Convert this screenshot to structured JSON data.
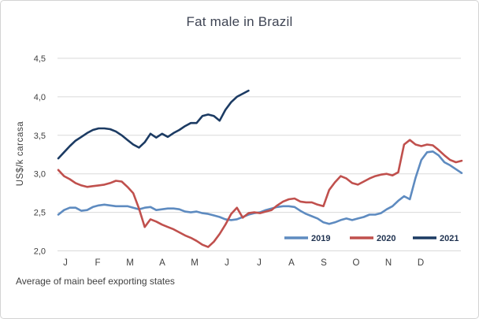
{
  "chart_data": {
    "type": "line",
    "title": "Fat male in Brazil",
    "ylabel": "US$/k carcasa",
    "footnote": "Average of main beef exporting states",
    "x_tick_labels": [
      "J",
      "F",
      "M",
      "A",
      "M",
      "J",
      "J",
      "A",
      "S",
      "O",
      "N",
      "D"
    ],
    "x_unit": "weekly observations, January to December",
    "y_tick_labels": [
      "2,0",
      "2,5",
      "3,0",
      "3,5",
      "4,0",
      "4,5"
    ],
    "ylim": [
      2.0,
      4.5
    ],
    "decimal_separator": ",",
    "grid": "horizontal",
    "gridline_color": "#d9d9d9",
    "background_color": "#ffffff",
    "legend_position": "inside-bottom-right",
    "legend_text_color": "#1f3250",
    "series": [
      {
        "name": "2019",
        "color": "#5e8bc0",
        "values": [
          2.47,
          2.53,
          2.56,
          2.56,
          2.52,
          2.53,
          2.57,
          2.59,
          2.6,
          2.59,
          2.58,
          2.58,
          2.58,
          2.56,
          2.54,
          2.56,
          2.57,
          2.53,
          2.54,
          2.55,
          2.55,
          2.54,
          2.51,
          2.5,
          2.51,
          2.49,
          2.48,
          2.46,
          2.44,
          2.41,
          2.4,
          2.41,
          2.44,
          2.47,
          2.49,
          2.5,
          2.53,
          2.55,
          2.57,
          2.58,
          2.58,
          2.57,
          2.52,
          2.48,
          2.45,
          2.42,
          2.37,
          2.35,
          2.37,
          2.4,
          2.42,
          2.4,
          2.42,
          2.44,
          2.47,
          2.47,
          2.49,
          2.54,
          2.58,
          2.65,
          2.71,
          2.67,
          2.95,
          3.18,
          3.28,
          3.29,
          3.24,
          3.15,
          3.11,
          3.06,
          3.01
        ]
      },
      {
        "name": "2020",
        "color": "#c0504d",
        "values": [
          3.05,
          2.97,
          2.93,
          2.88,
          2.85,
          2.83,
          2.84,
          2.85,
          2.86,
          2.88,
          2.91,
          2.9,
          2.83,
          2.75,
          2.55,
          2.31,
          2.41,
          2.38,
          2.34,
          2.31,
          2.28,
          2.24,
          2.2,
          2.17,
          2.13,
          2.08,
          2.05,
          2.12,
          2.22,
          2.34,
          2.48,
          2.56,
          2.43,
          2.49,
          2.5,
          2.49,
          2.51,
          2.53,
          2.59,
          2.64,
          2.67,
          2.68,
          2.64,
          2.63,
          2.63,
          2.6,
          2.58,
          2.79,
          2.89,
          2.97,
          2.94,
          2.88,
          2.86,
          2.9,
          2.94,
          2.97,
          2.99,
          3.0,
          2.98,
          3.02,
          3.38,
          3.44,
          3.38,
          3.36,
          3.38,
          3.37,
          3.31,
          3.24,
          3.18,
          3.15,
          3.17
        ]
      },
      {
        "name": "2021",
        "color": "#1c3b63",
        "ends": "mid-July",
        "values": [
          3.2,
          3.28,
          3.36,
          3.43,
          3.48,
          3.53,
          3.57,
          3.59,
          3.59,
          3.58,
          3.55,
          3.5,
          3.44,
          3.38,
          3.34,
          3.41,
          3.52,
          3.47,
          3.52,
          3.48,
          3.53,
          3.57,
          3.62,
          3.66,
          3.66,
          3.75,
          3.77,
          3.75,
          3.69,
          3.83,
          3.93,
          4.0,
          4.04,
          4.08
        ]
      }
    ]
  }
}
